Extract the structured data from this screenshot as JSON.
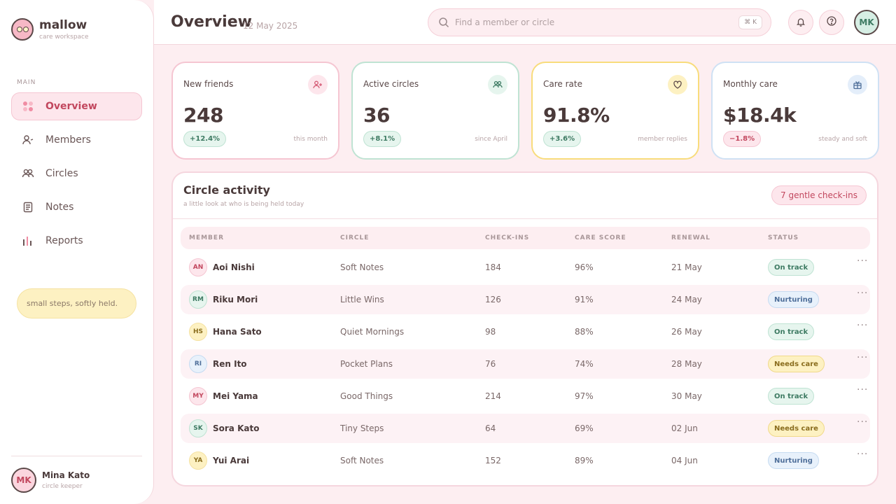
{
  "brand": {
    "name": "mallow",
    "subtitle": "care workspace"
  },
  "sidebar": {
    "section": "MAIN",
    "items": [
      {
        "label": "Overview",
        "icon": "grid-icon",
        "active": true
      },
      {
        "label": "Members",
        "icon": "user-icon",
        "active": false
      },
      {
        "label": "Circles",
        "icon": "users-icon",
        "active": false
      },
      {
        "label": "Notes",
        "icon": "notes-icon",
        "active": false
      },
      {
        "label": "Reports",
        "icon": "bar-chart-icon",
        "active": false
      }
    ],
    "note": "small steps, softly held.",
    "user": {
      "initials": "MK",
      "name": "Mina Kato",
      "role": "circle keeper"
    }
  },
  "header": {
    "title": "Overview",
    "date": "12 May 2025",
    "search_placeholder": "Find a member or circle",
    "shortcut": "⌘ K",
    "avatar": "MK"
  },
  "kpis": [
    {
      "label": "New friends",
      "value": "248",
      "delta": "+12.4%",
      "note": "this month",
      "accent": "#f5c6d2",
      "trend": "up"
    },
    {
      "label": "Active circles",
      "value": "36",
      "delta": "+8.1%",
      "note": "since April",
      "accent": "#bfe3d3",
      "trend": "up"
    },
    {
      "label": "Care rate",
      "value": "91.8%",
      "delta": "+3.6%",
      "note": "member replies",
      "accent": "#f8dc7c",
      "trend": "up"
    },
    {
      "label": "Monthly care",
      "value": "$18.4k",
      "delta": "−1.8%",
      "note": "steady and soft",
      "accent": "#cfe1f4",
      "trend": "down"
    }
  ],
  "activity": {
    "title": "Circle activity",
    "subtitle": "a little look at who is being held today",
    "badge": "7 gentle check-ins",
    "columns": [
      "MEMBER",
      "CIRCLE",
      "CHECK-INS",
      "CARE SCORE",
      "RENEWAL",
      "STATUS"
    ],
    "rows": [
      {
        "initials": "AN",
        "name": "Aoi Nishi",
        "circle": "Soft Notes",
        "checkins": "184",
        "score": "96%",
        "renewal": "21 May",
        "status": "On track"
      },
      {
        "initials": "RM",
        "name": "Riku Mori",
        "circle": "Little Wins",
        "checkins": "126",
        "score": "91%",
        "renewal": "24 May",
        "status": "Nurturing"
      },
      {
        "initials": "HS",
        "name": "Hana Sato",
        "circle": "Quiet Mornings",
        "checkins": "98",
        "score": "88%",
        "renewal": "26 May",
        "status": "On track"
      },
      {
        "initials": "RI",
        "name": "Ren Ito",
        "circle": "Pocket Plans",
        "checkins": "76",
        "score": "74%",
        "renewal": "28 May",
        "status": "Needs care"
      },
      {
        "initials": "MY",
        "name": "Mei Yama",
        "circle": "Good Things",
        "checkins": "214",
        "score": "97%",
        "renewal": "30 May",
        "status": "On track"
      },
      {
        "initials": "SK",
        "name": "Sora Kato",
        "circle": "Tiny Steps",
        "checkins": "64",
        "score": "69%",
        "renewal": "02 Jun",
        "status": "Needs care"
      },
      {
        "initials": "YA",
        "name": "Yui Arai",
        "circle": "Soft Notes",
        "checkins": "152",
        "score": "89%",
        "renewal": "04 Jun",
        "status": "Nurturing"
      }
    ]
  }
}
